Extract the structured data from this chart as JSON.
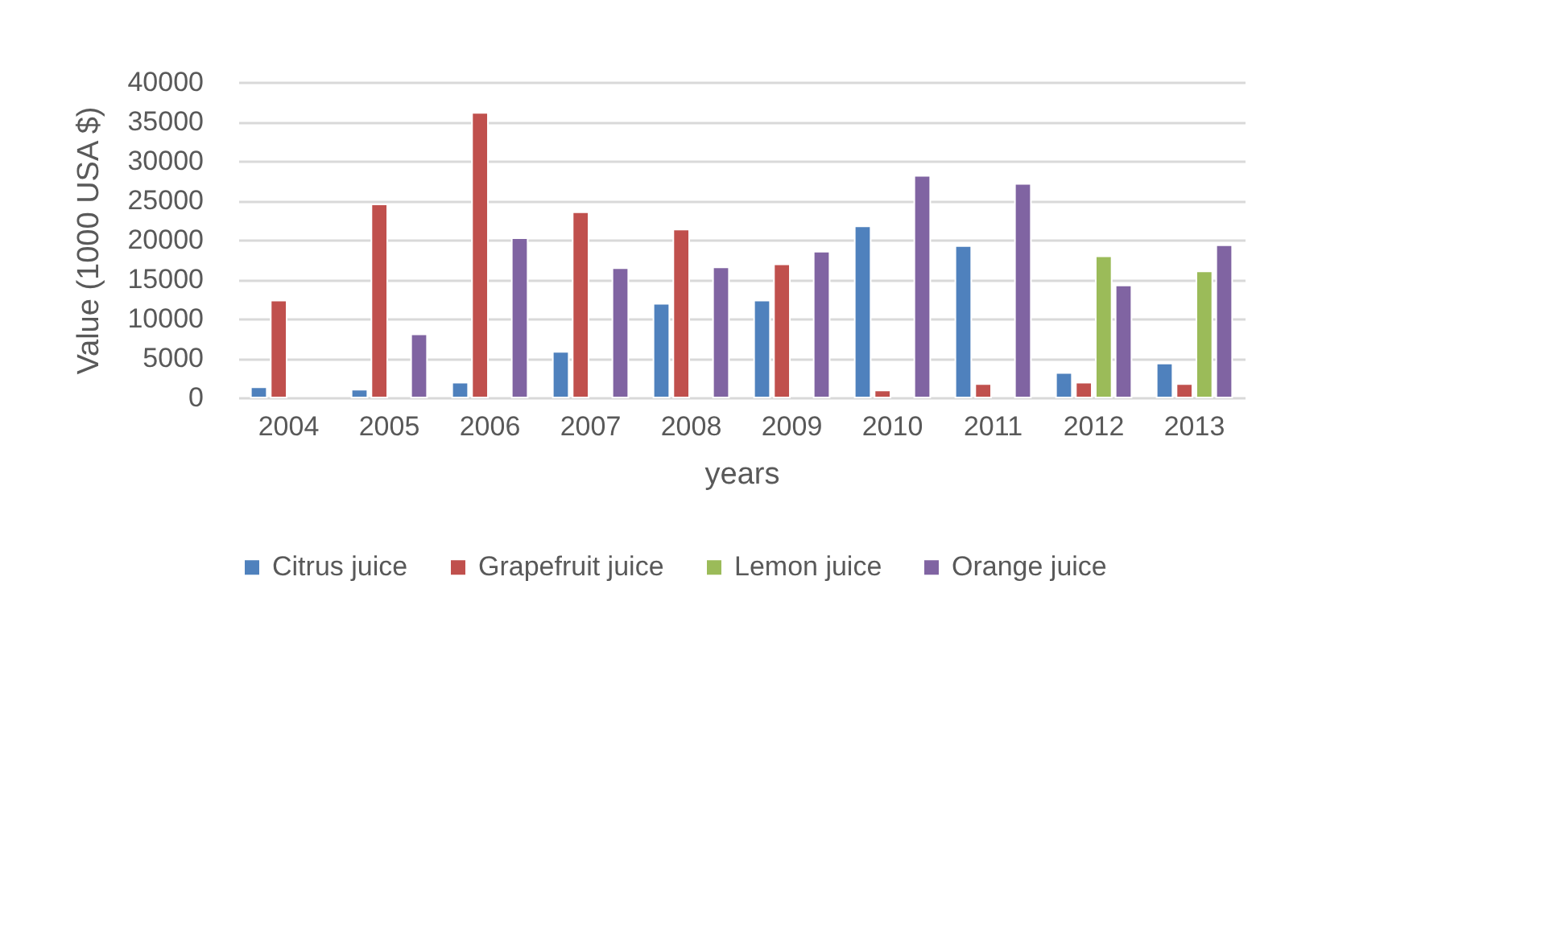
{
  "chart_data": {
    "type": "bar",
    "xlabel": "years",
    "ylabel": "Value (1000 USA $)",
    "categories": [
      "2004",
      "2005",
      "2006",
      "2007",
      "2008",
      "2009",
      "2010",
      "2011",
      "2012",
      "2013"
    ],
    "series": [
      {
        "name": "Citrus juice",
        "color": "#4f81bd",
        "values": [
          1300,
          1000,
          1900,
          5800,
          11900,
          12300,
          21700,
          19200,
          3100,
          4300
        ]
      },
      {
        "name": "Grapefruit juice",
        "color": "#c0504d",
        "values": [
          12300,
          24500,
          36100,
          23500,
          21300,
          16900,
          900,
          1700,
          1900,
          1700
        ]
      },
      {
        "name": "Lemon juice",
        "color": "#9bbb59",
        "values": [
          null,
          null,
          null,
          null,
          null,
          null,
          null,
          null,
          17900,
          16000
        ]
      },
      {
        "name": "Orange juice",
        "color": "#8064a2",
        "values": [
          null,
          8000,
          20200,
          16400,
          16500,
          18500,
          28100,
          27100,
          14200,
          19300
        ]
      }
    ],
    "ylim": [
      0,
      40000
    ],
    "yticks": [
      0,
      5000,
      10000,
      15000,
      20000,
      25000,
      30000,
      35000,
      40000
    ],
    "grid": "y",
    "legend": "bottom"
  }
}
